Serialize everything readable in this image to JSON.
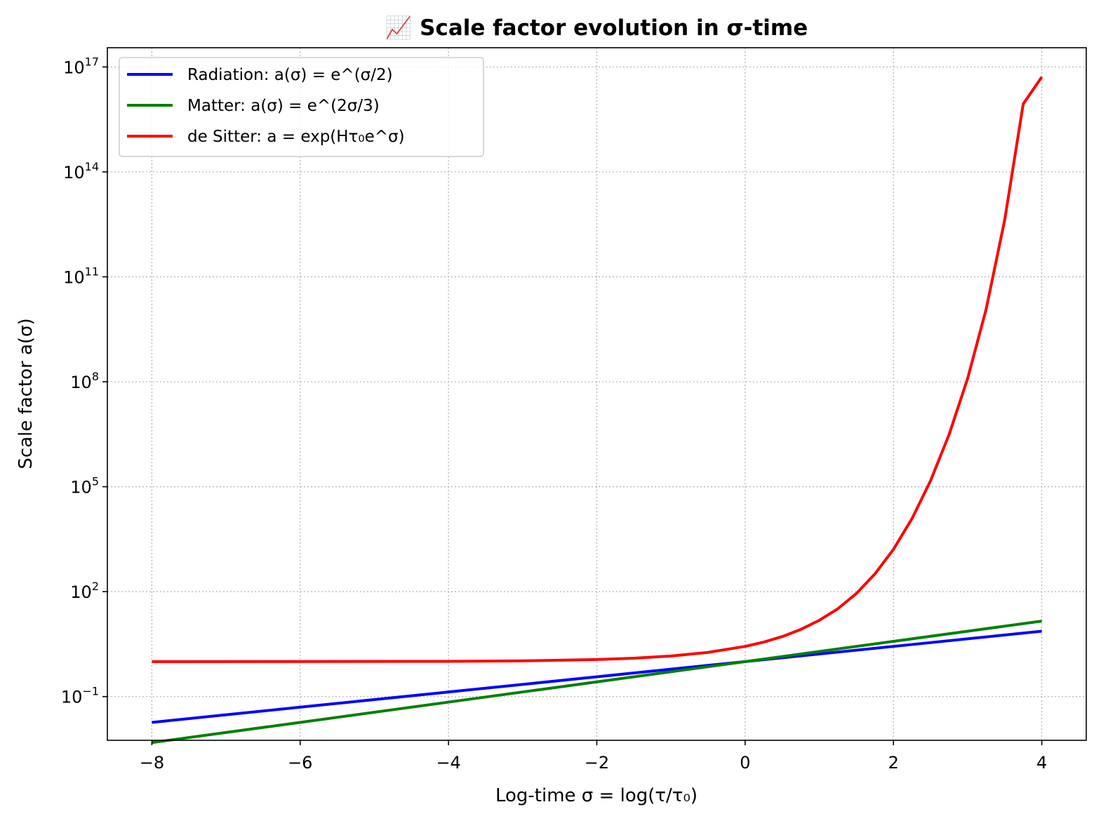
{
  "chart_data": {
    "type": "line",
    "title": "📈 Scale factor evolution in σ-time",
    "xlabel": "Log-time σ = log(τ/τ₀)",
    "ylabel": "Scale factor a(σ)",
    "xlim": [
      -8.6,
      4.6
    ],
    "ylim_log10": [
      -2.25,
      17.55
    ],
    "yscale": "log",
    "grid": true,
    "legend_position": "top-left",
    "x_ticks": [
      {
        "value": -8,
        "label": "−8"
      },
      {
        "value": -6,
        "label": "−6"
      },
      {
        "value": -4,
        "label": "−4"
      },
      {
        "value": -2,
        "label": "−2"
      },
      {
        "value": 0,
        "label": "0"
      },
      {
        "value": 2,
        "label": "2"
      },
      {
        "value": 4,
        "label": "4"
      }
    ],
    "y_ticks": [
      {
        "exp": -1,
        "base": "10",
        "sup": "−1"
      },
      {
        "exp": 2,
        "base": "10",
        "sup": "2"
      },
      {
        "exp": 5,
        "base": "10",
        "sup": "5"
      },
      {
        "exp": 8,
        "base": "10",
        "sup": "8"
      },
      {
        "exp": 11,
        "base": "10",
        "sup": "11"
      },
      {
        "exp": 14,
        "base": "10",
        "sup": "14"
      },
      {
        "exp": 17,
        "base": "10",
        "sup": "17"
      }
    ],
    "series": [
      {
        "name": "Radiation: a(σ) = e^(σ/2)",
        "color": "#0000ff",
        "x": [
          -8,
          -6,
          -4,
          -2,
          0,
          2,
          4
        ],
        "y": [
          0.0183,
          0.0498,
          0.1353,
          0.3679,
          1.0,
          2.718,
          7.389
        ]
      },
      {
        "name": "Matter: a(σ) = e^(2σ/3)",
        "color": "#008000",
        "x": [
          -8,
          -6,
          -4,
          -2,
          0,
          2,
          4
        ],
        "y": [
          0.00483,
          0.0183,
          0.0695,
          0.2636,
          1.0,
          3.794,
          14.39
        ]
      },
      {
        "name": "de Sitter: a = exp(Hτ₀e^σ)",
        "color": "#ff0000",
        "x": [
          -8,
          -6,
          -4,
          -3,
          -2,
          -1.5,
          -1,
          -0.5,
          0,
          0.25,
          0.5,
          0.75,
          1,
          1.25,
          1.5,
          1.75,
          2,
          2.25,
          2.5,
          2.75,
          3,
          3.25,
          3.5,
          3.75,
          4
        ],
        "y": [
          1.0003,
          1.0025,
          1.0185,
          1.051,
          1.1447,
          1.2498,
          1.4447,
          1.8339,
          2.718,
          3.609,
          5.189,
          8.291,
          15.15,
          32.45,
          88.41,
          321.0,
          1618.2,
          12240.0,
          147700.0,
          3093000.0,
          123400000.0,
          11940000000.0,
          4227000000000.0,
          8750000000000000.0,
          5.15e+16
        ]
      }
    ]
  }
}
